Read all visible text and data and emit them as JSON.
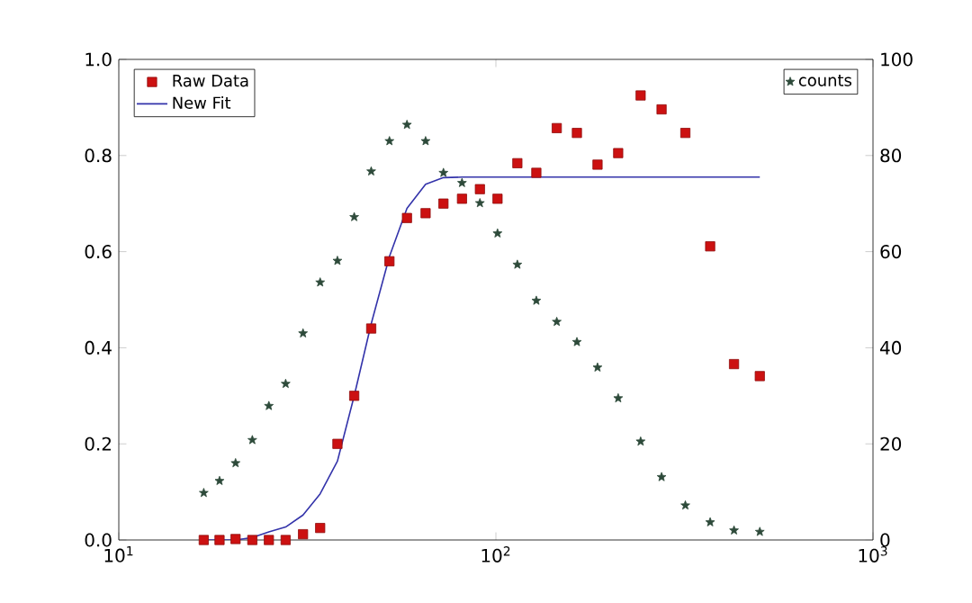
{
  "chart_data": {
    "type": "scatter",
    "x": [
      16.8,
      18.5,
      20.4,
      22.6,
      25.0,
      27.7,
      30.8,
      34.2,
      38.0,
      42.1,
      46.7,
      52.2,
      58.1,
      65.1,
      72.6,
      81.3,
      90.7,
      101,
      114,
      128,
      145,
      164,
      186,
      211,
      242,
      275,
      318,
      370,
      428,
      501
    ],
    "series": [
      {
        "name": "Raw Data",
        "marker": "square",
        "color": "#cc1111",
        "values": [
          0,
          0,
          0.002,
          0,
          0,
          0,
          0.012,
          0.025,
          0.2,
          0.3,
          0.44,
          0.58,
          0.67,
          0.68,
          0.7,
          0.71,
          0.73,
          0.71,
          0.784,
          0.764,
          0.857,
          0.847,
          0.781,
          0.805,
          0.925,
          0.896,
          0.847,
          0.611,
          0.366,
          0.341
        ]
      },
      {
        "name": "New Fit",
        "type": "line",
        "marker": "none",
        "line_style": "solid",
        "color": "#3333aa",
        "values": [
          0,
          0,
          0,
          0.005,
          0.017,
          0.027,
          0.052,
          0.096,
          0.164,
          0.3,
          0.45,
          0.59,
          0.69,
          0.74,
          0.754,
          0.755,
          0.755,
          0.755,
          0.755,
          0.755,
          0.755,
          0.755,
          0.755,
          0.755,
          0.755,
          0.755,
          0.755,
          0.755,
          0.755,
          0.755
        ]
      },
      {
        "name": "counts",
        "marker": "star",
        "axis": "y2",
        "color": "#2d4a3a",
        "values": [
          9.8,
          12.3,
          16.0,
          20.8,
          27.9,
          32.5,
          43.0,
          53.6,
          58.1,
          67.2,
          76.7,
          83.0,
          86.4,
          83.0,
          76.4,
          74.3,
          70.1,
          63.8,
          57.3,
          49.8,
          45.4,
          41.2,
          35.9,
          29.5,
          20.5,
          13.1,
          7.2,
          3.7,
          2.0,
          1.7
        ]
      }
    ],
    "log": "x",
    "xlim": [
      10,
      1000
    ],
    "xticks": [
      {
        "value": 10,
        "label": "10$^{1}$"
      },
      {
        "value": 100,
        "label": "10$^{2}$"
      },
      {
        "value": 1000,
        "label": "10$^{3}$"
      }
    ],
    "ylim": [
      0,
      1
    ],
    "yticks": [
      {
        "value": 0,
        "label": "0.0"
      },
      {
        "value": 0.2,
        "label": "0.2"
      },
      {
        "value": 0.4,
        "label": "0.4"
      },
      {
        "value": 0.6,
        "label": "0.6"
      },
      {
        "value": 0.8,
        "label": "0.8"
      },
      {
        "value": 1,
        "label": "1.0"
      }
    ],
    "y2lim": [
      0,
      100
    ],
    "y2ticks": [
      0,
      20,
      40,
      60,
      80,
      100
    ],
    "grid": false,
    "legend": "top left"
  }
}
